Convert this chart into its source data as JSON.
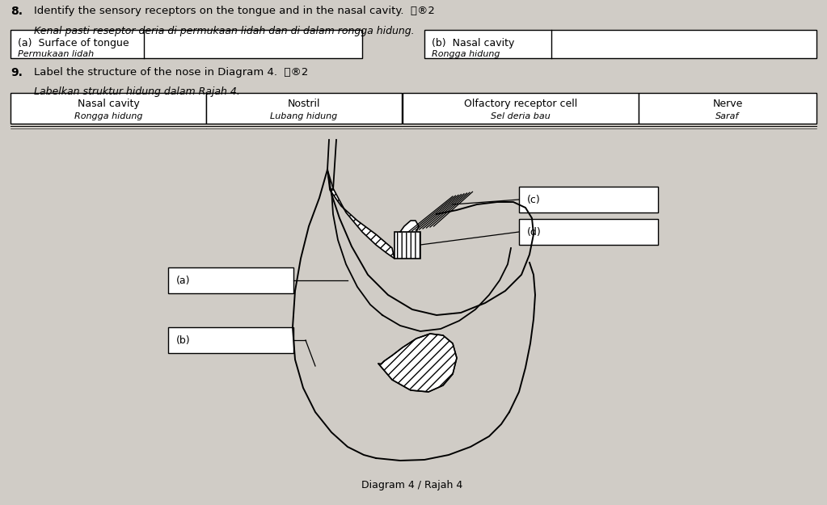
{
  "bg_color": "#d0ccc6",
  "q8_number": "8.",
  "q8_text_en": "Identify the sensory receptors on the tongue and in the nasal cavity.",
  "q8_text_my": "Kenal pasti reseptor deria di permukaan lidah dan di dalam rongga hidung.",
  "box_a_label_en": "(a)  Surface of tongue",
  "box_a_label_my": "Permukaan lidah",
  "box_b_label_en": "(b)  Nasal cavity",
  "box_b_label_my": "Rongga hidung",
  "q9_number": "9.",
  "q9_text_en": "Label the structure of the nose in Diagram 4.",
  "q9_text_my": "Labelkan struktur hidung dalam Rajah 4.",
  "word_box1_en": "Nasal cavity",
  "word_box1_my": "Rongga hidung",
  "word_box2_en": "Nostril",
  "word_box2_my": "Lubang hidung",
  "word_box3_en": "Olfactory receptor cell",
  "word_box3_my": "Sel deria bau",
  "word_box4_en": "Nerve",
  "word_box4_my": "Saraf",
  "label_a": "(a)",
  "label_b": "(b)",
  "label_c": "(c)",
  "label_d": "(d)",
  "diagram_caption": "Diagram 4 / Rajah 4"
}
